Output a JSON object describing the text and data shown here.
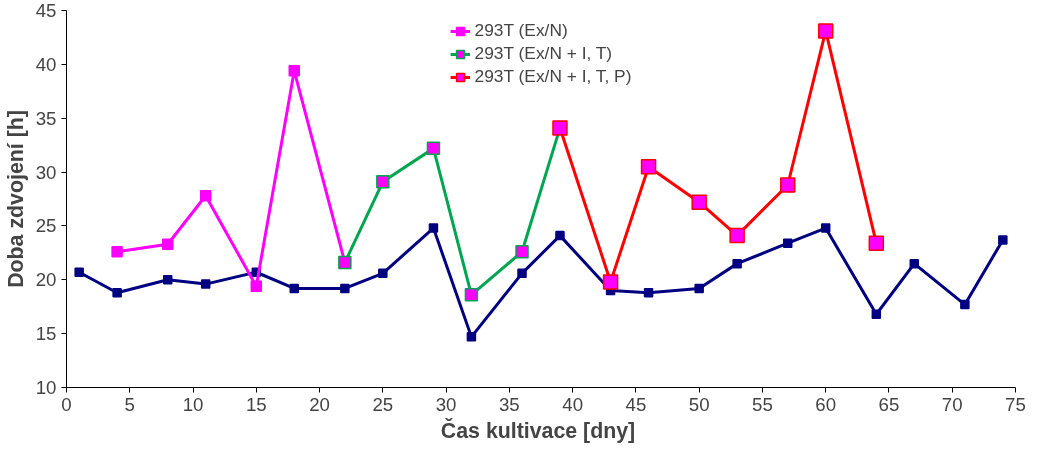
{
  "chart_data": {
    "type": "line",
    "xlabel": "Čas kultivace  [dny]",
    "ylabel": "Doba zdvojení [h]",
    "xlim": [
      0,
      75
    ],
    "xticks": [
      0,
      5,
      10,
      15,
      20,
      25,
      30,
      35,
      40,
      45,
      50,
      55,
      60,
      65,
      70,
      75
    ],
    "ylim": [
      10,
      45
    ],
    "yticks": [
      10,
      15,
      20,
      25,
      30,
      35,
      40,
      45
    ],
    "grid": false,
    "legend": "top",
    "marker": "square",
    "line_style": "solid",
    "series": [
      {
        "color": "#000080",
        "x": [
          1,
          4,
          8,
          11,
          15,
          18,
          22,
          25,
          29,
          32,
          36,
          39,
          43,
          46,
          50,
          53,
          57,
          60,
          64,
          67,
          71,
          74
        ],
        "values": [
          20.7,
          18.8,
          20.0,
          19.6,
          20.7,
          19.2,
          19.2,
          20.6,
          24.8,
          14.7,
          20.6,
          24.1,
          19.0,
          18.8,
          19.2,
          21.5,
          23.4,
          24.8,
          16.8,
          21.5,
          17.7,
          23.7
        ]
      },
      {
        "name": "293T (Ex/N)",
        "color": "#ff00ff",
        "x": [
          4,
          8,
          11,
          15,
          18,
          22
        ],
        "values": [
          22.6,
          23.3,
          27.8,
          19.4,
          39.4,
          21.6
        ]
      },
      {
        "name": "293T (Ex/N + I, T)",
        "color": "#00a550",
        "x": [
          22,
          25,
          29,
          32,
          36,
          39
        ],
        "values": [
          21.6,
          29.1,
          32.2,
          18.6,
          22.6,
          34.1
        ]
      },
      {
        "name": "293T (Ex/N + I, T, P)",
        "color": "#ff0000",
        "x": [
          39,
          43,
          46,
          50,
          53,
          57,
          60,
          64
        ],
        "values": [
          34.1,
          19.8,
          30.5,
          27.2,
          24.1,
          28.8,
          43.1,
          23.4
        ]
      }
    ]
  }
}
